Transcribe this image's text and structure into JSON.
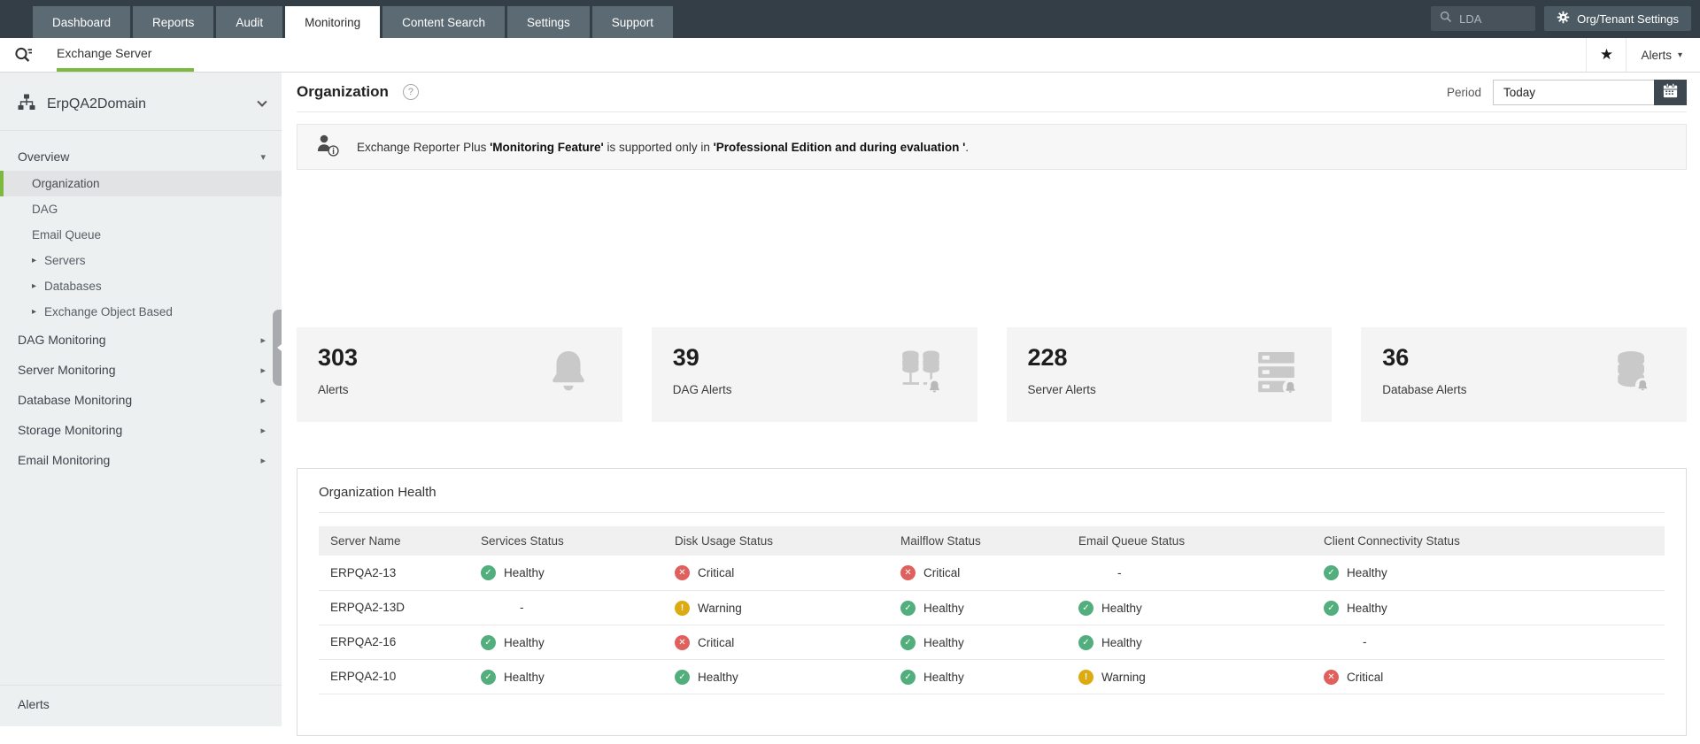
{
  "colors": {
    "accent_green": "#7cb93e",
    "nav_dark": "#343e46",
    "healthy": "#52ae7d",
    "critical": "#e0605d",
    "warning": "#dcab11"
  },
  "topnav": {
    "tabs": [
      "Dashboard",
      "Reports",
      "Audit",
      "Monitoring",
      "Content Search",
      "Settings",
      "Support"
    ],
    "active_tab": "Monitoring",
    "search_value": "LDA",
    "settings_button": "Org/Tenant Settings"
  },
  "subnav": {
    "tab": "Exchange Server",
    "alerts_dropdown": "Alerts"
  },
  "sidebar": {
    "domain": "ErpQA2Domain",
    "groups": [
      {
        "label": "Overview",
        "expanded": true,
        "children": [
          {
            "label": "Organization",
            "selected": true
          },
          {
            "label": "DAG"
          },
          {
            "label": "Email Queue"
          },
          {
            "label": "Servers",
            "expandable": true
          },
          {
            "label": "Databases",
            "expandable": true
          },
          {
            "label": "Exchange Object Based",
            "expandable": true
          }
        ]
      },
      {
        "label": "DAG Monitoring"
      },
      {
        "label": "Server Monitoring"
      },
      {
        "label": "Database Monitoring"
      },
      {
        "label": "Storage Monitoring"
      },
      {
        "label": "Email Monitoring"
      }
    ],
    "footer": "Alerts"
  },
  "header": {
    "title": "Organization",
    "period_label": "Period",
    "period_value": "Today"
  },
  "banner": {
    "part1": "Exchange Reporter Plus ",
    "part2": "'Monitoring Feature'",
    "part3": " is supported only in ",
    "part4": "'Professional Edition and during evaluation '",
    "part5": "."
  },
  "stats": [
    {
      "value": "303",
      "label": "Alerts",
      "icon": "bell-icon"
    },
    {
      "value": "39",
      "label": "DAG Alerts",
      "icon": "dag-alert-icon"
    },
    {
      "value": "228",
      "label": "Server Alerts",
      "icon": "server-alert-icon"
    },
    {
      "value": "36",
      "label": "Database Alerts",
      "icon": "database-alert-icon"
    }
  ],
  "health": {
    "title": "Organization Health",
    "columns": [
      "Server Name",
      "Services Status",
      "Disk Usage Status",
      "Mailflow Status",
      "Email Queue Status",
      "Client Connectivity Status"
    ],
    "rows": [
      {
        "server": "ERPQA2-13",
        "cells": [
          {
            "status": "healthy",
            "label": "Healthy"
          },
          {
            "status": "critical",
            "label": "Critical"
          },
          {
            "status": "critical",
            "label": "Critical"
          },
          {
            "status": "none",
            "label": "-"
          },
          {
            "status": "healthy",
            "label": "Healthy"
          }
        ]
      },
      {
        "server": "ERPQA2-13D",
        "cells": [
          {
            "status": "none",
            "label": "-"
          },
          {
            "status": "warning",
            "label": "Warning"
          },
          {
            "status": "healthy",
            "label": "Healthy"
          },
          {
            "status": "healthy",
            "label": "Healthy"
          },
          {
            "status": "healthy",
            "label": "Healthy"
          }
        ]
      },
      {
        "server": "ERPQA2-16",
        "cells": [
          {
            "status": "healthy",
            "label": "Healthy"
          },
          {
            "status": "critical",
            "label": "Critical"
          },
          {
            "status": "healthy",
            "label": "Healthy"
          },
          {
            "status": "healthy",
            "label": "Healthy"
          },
          {
            "status": "none",
            "label": "-"
          }
        ]
      },
      {
        "server": "ERPQA2-10",
        "cells": [
          {
            "status": "healthy",
            "label": "Healthy"
          },
          {
            "status": "healthy",
            "label": "Healthy"
          },
          {
            "status": "healthy",
            "label": "Healthy"
          },
          {
            "status": "warning",
            "label": "Warning"
          },
          {
            "status": "critical",
            "label": "Critical"
          }
        ]
      }
    ]
  }
}
